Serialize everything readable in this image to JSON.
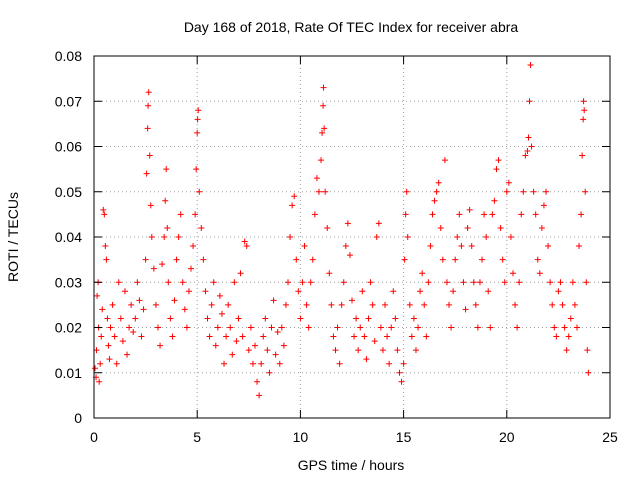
{
  "chart_data": {
    "type": "scatter",
    "title": "Day 168 of 2018, Rate Of TEC Index for receiver abra",
    "xlabel": "GPS time / hours",
    "ylabel": "ROTI / TECUs",
    "xlim": [
      0,
      25
    ],
    "ylim": [
      0,
      0.08
    ],
    "x_ticks": [
      0,
      5,
      10,
      15,
      20,
      25
    ],
    "x_tick_labels": [
      "0",
      "5",
      "10",
      "15",
      "20",
      "25"
    ],
    "y_ticks": [
      0,
      0.01,
      0.02,
      0.03,
      0.04,
      0.05,
      0.06,
      0.07,
      0.08
    ],
    "y_tick_labels": [
      "0",
      "0.01",
      "0.02",
      "0.03",
      "0.04",
      "0.05",
      "0.06",
      "0.07",
      "0.08"
    ],
    "grid": true,
    "marker": "plus",
    "marker_color": "#ff0000",
    "points": [
      [
        0.05,
        0.011
      ],
      [
        0.1,
        0.009
      ],
      [
        0.12,
        0.015
      ],
      [
        0.15,
        0.027
      ],
      [
        0.2,
        0.03
      ],
      [
        0.22,
        0.02
      ],
      [
        0.25,
        0.008
      ],
      [
        0.3,
        0.012
      ],
      [
        0.35,
        0.018
      ],
      [
        0.4,
        0.024
      ],
      [
        0.45,
        0.046
      ],
      [
        0.5,
        0.045
      ],
      [
        0.55,
        0.038
      ],
      [
        0.6,
        0.035
      ],
      [
        0.65,
        0.022
      ],
      [
        0.7,
        0.016
      ],
      [
        0.75,
        0.013
      ],
      [
        0.8,
        0.02
      ],
      [
        0.9,
        0.025
      ],
      [
        1.0,
        0.018
      ],
      [
        1.1,
        0.012
      ],
      [
        1.2,
        0.03
      ],
      [
        1.3,
        0.022
      ],
      [
        1.4,
        0.017
      ],
      [
        1.5,
        0.028
      ],
      [
        1.6,
        0.014
      ],
      [
        1.7,
        0.02
      ],
      [
        1.8,
        0.025
      ],
      [
        1.9,
        0.019
      ],
      [
        2.0,
        0.022
      ],
      [
        2.1,
        0.03
      ],
      [
        2.2,
        0.026
      ],
      [
        2.3,
        0.018
      ],
      [
        2.4,
        0.024
      ],
      [
        2.5,
        0.035
      ],
      [
        2.55,
        0.054
      ],
      [
        2.6,
        0.064
      ],
      [
        2.62,
        0.069
      ],
      [
        2.65,
        0.072
      ],
      [
        2.7,
        0.058
      ],
      [
        2.75,
        0.047
      ],
      [
        2.8,
        0.04
      ],
      [
        2.9,
        0.033
      ],
      [
        3.0,
        0.025
      ],
      [
        3.1,
        0.02
      ],
      [
        3.2,
        0.016
      ],
      [
        3.3,
        0.034
      ],
      [
        3.4,
        0.04
      ],
      [
        3.45,
        0.048
      ],
      [
        3.5,
        0.055
      ],
      [
        3.55,
        0.042
      ],
      [
        3.6,
        0.03
      ],
      [
        3.7,
        0.022
      ],
      [
        3.8,
        0.018
      ],
      [
        3.9,
        0.026
      ],
      [
        4.0,
        0.035
      ],
      [
        4.1,
        0.04
      ],
      [
        4.2,
        0.045
      ],
      [
        4.3,
        0.03
      ],
      [
        4.4,
        0.024
      ],
      [
        4.5,
        0.02
      ],
      [
        4.6,
        0.028
      ],
      [
        4.7,
        0.033
      ],
      [
        4.8,
        0.038
      ],
      [
        4.9,
        0.045
      ],
      [
        4.95,
        0.055
      ],
      [
        5.0,
        0.063
      ],
      [
        5.02,
        0.066
      ],
      [
        5.05,
        0.068
      ],
      [
        5.1,
        0.05
      ],
      [
        5.2,
        0.042
      ],
      [
        5.3,
        0.035
      ],
      [
        5.4,
        0.028
      ],
      [
        5.5,
        0.022
      ],
      [
        5.6,
        0.018
      ],
      [
        5.7,
        0.025
      ],
      [
        5.8,
        0.03
      ],
      [
        5.9,
        0.016
      ],
      [
        6.0,
        0.02
      ],
      [
        6.1,
        0.027
      ],
      [
        6.2,
        0.023
      ],
      [
        6.3,
        0.012
      ],
      [
        6.4,
        0.018
      ],
      [
        6.5,
        0.025
      ],
      [
        6.6,
        0.02
      ],
      [
        6.7,
        0.014
      ],
      [
        6.8,
        0.03
      ],
      [
        6.9,
        0.017
      ],
      [
        7.0,
        0.022
      ],
      [
        7.1,
        0.032
      ],
      [
        7.2,
        0.018
      ],
      [
        7.3,
        0.039
      ],
      [
        7.4,
        0.038
      ],
      [
        7.5,
        0.015
      ],
      [
        7.6,
        0.02
      ],
      [
        7.7,
        0.012
      ],
      [
        7.8,
        0.016
      ],
      [
        7.9,
        0.008
      ],
      [
        8.0,
        0.005
      ],
      [
        8.1,
        0.012
      ],
      [
        8.2,
        0.018
      ],
      [
        8.3,
        0.022
      ],
      [
        8.4,
        0.015
      ],
      [
        8.5,
        0.01
      ],
      [
        8.6,
        0.02
      ],
      [
        8.7,
        0.026
      ],
      [
        8.8,
        0.014
      ],
      [
        8.9,
        0.019
      ],
      [
        9.0,
        0.012
      ],
      [
        9.1,
        0.02
      ],
      [
        9.2,
        0.016
      ],
      [
        9.3,
        0.025
      ],
      [
        9.4,
        0.03
      ],
      [
        9.5,
        0.04
      ],
      [
        9.6,
        0.047
      ],
      [
        9.7,
        0.049
      ],
      [
        9.8,
        0.035
      ],
      [
        9.9,
        0.028
      ],
      [
        10.0,
        0.022
      ],
      [
        10.1,
        0.03
      ],
      [
        10.2,
        0.038
      ],
      [
        10.3,
        0.025
      ],
      [
        10.4,
        0.02
      ],
      [
        10.5,
        0.03
      ],
      [
        10.6,
        0.035
      ],
      [
        10.7,
        0.045
      ],
      [
        10.8,
        0.053
      ],
      [
        10.9,
        0.05
      ],
      [
        11.0,
        0.057
      ],
      [
        11.05,
        0.063
      ],
      [
        11.1,
        0.069
      ],
      [
        11.12,
        0.073
      ],
      [
        11.15,
        0.064
      ],
      [
        11.2,
        0.05
      ],
      [
        11.3,
        0.042
      ],
      [
        11.4,
        0.032
      ],
      [
        11.5,
        0.025
      ],
      [
        11.6,
        0.018
      ],
      [
        11.7,
        0.015
      ],
      [
        11.8,
        0.02
      ],
      [
        11.9,
        0.012
      ],
      [
        12.0,
        0.025
      ],
      [
        12.1,
        0.03
      ],
      [
        12.2,
        0.038
      ],
      [
        12.3,
        0.043
      ],
      [
        12.4,
        0.036
      ],
      [
        12.5,
        0.026
      ],
      [
        12.6,
        0.018
      ],
      [
        12.7,
        0.022
      ],
      [
        12.8,
        0.015
      ],
      [
        12.9,
        0.02
      ],
      [
        13.0,
        0.028
      ],
      [
        13.1,
        0.018
      ],
      [
        13.2,
        0.013
      ],
      [
        13.3,
        0.022
      ],
      [
        13.4,
        0.03
      ],
      [
        13.5,
        0.025
      ],
      [
        13.6,
        0.017
      ],
      [
        13.7,
        0.04
      ],
      [
        13.8,
        0.043
      ],
      [
        13.9,
        0.02
      ],
      [
        14.0,
        0.015
      ],
      [
        14.1,
        0.025
      ],
      [
        14.2,
        0.018
      ],
      [
        14.3,
        0.012
      ],
      [
        14.4,
        0.02
      ],
      [
        14.5,
        0.028
      ],
      [
        14.6,
        0.022
      ],
      [
        14.7,
        0.015
      ],
      [
        14.8,
        0.01
      ],
      [
        14.9,
        0.008
      ],
      [
        15.0,
        0.012
      ],
      [
        15.05,
        0.035
      ],
      [
        15.1,
        0.045
      ],
      [
        15.15,
        0.05
      ],
      [
        15.2,
        0.04
      ],
      [
        15.3,
        0.025
      ],
      [
        15.4,
        0.018
      ],
      [
        15.5,
        0.022
      ],
      [
        15.6,
        0.015
      ],
      [
        15.7,
        0.02
      ],
      [
        15.8,
        0.028
      ],
      [
        15.9,
        0.032
      ],
      [
        16.0,
        0.025
      ],
      [
        16.1,
        0.018
      ],
      [
        16.2,
        0.03
      ],
      [
        16.3,
        0.038
      ],
      [
        16.4,
        0.045
      ],
      [
        16.5,
        0.048
      ],
      [
        16.6,
        0.05
      ],
      [
        16.7,
        0.052
      ],
      [
        16.8,
        0.042
      ],
      [
        16.9,
        0.035
      ],
      [
        17.0,
        0.057
      ],
      [
        17.1,
        0.03
      ],
      [
        17.2,
        0.025
      ],
      [
        17.3,
        0.02
      ],
      [
        17.4,
        0.028
      ],
      [
        17.5,
        0.035
      ],
      [
        17.6,
        0.04
      ],
      [
        17.7,
        0.045
      ],
      [
        17.8,
        0.038
      ],
      [
        17.9,
        0.03
      ],
      [
        18.0,
        0.024
      ],
      [
        18.1,
        0.042
      ],
      [
        18.2,
        0.046
      ],
      [
        18.3,
        0.038
      ],
      [
        18.4,
        0.03
      ],
      [
        18.5,
        0.025
      ],
      [
        18.6,
        0.02
      ],
      [
        18.7,
        0.03
      ],
      [
        18.8,
        0.035
      ],
      [
        18.9,
        0.045
      ],
      [
        19.0,
        0.04
      ],
      [
        19.1,
        0.028
      ],
      [
        19.2,
        0.02
      ],
      [
        19.3,
        0.045
      ],
      [
        19.4,
        0.048
      ],
      [
        19.5,
        0.055
      ],
      [
        19.6,
        0.057
      ],
      [
        19.7,
        0.042
      ],
      [
        19.8,
        0.035
      ],
      [
        19.9,
        0.03
      ],
      [
        20.0,
        0.05
      ],
      [
        20.1,
        0.052
      ],
      [
        20.2,
        0.04
      ],
      [
        20.3,
        0.032
      ],
      [
        20.4,
        0.025
      ],
      [
        20.5,
        0.02
      ],
      [
        20.6,
        0.03
      ],
      [
        20.7,
        0.045
      ],
      [
        20.8,
        0.05
      ],
      [
        20.9,
        0.058
      ],
      [
        21.0,
        0.059
      ],
      [
        21.05,
        0.062
      ],
      [
        21.1,
        0.07
      ],
      [
        21.15,
        0.078
      ],
      [
        21.2,
        0.06
      ],
      [
        21.3,
        0.05
      ],
      [
        21.4,
        0.045
      ],
      [
        21.5,
        0.035
      ],
      [
        21.6,
        0.032
      ],
      [
        21.7,
        0.042
      ],
      [
        21.8,
        0.047
      ],
      [
        21.9,
        0.05
      ],
      [
        22.0,
        0.038
      ],
      [
        22.1,
        0.03
      ],
      [
        22.2,
        0.025
      ],
      [
        22.3,
        0.02
      ],
      [
        22.4,
        0.018
      ],
      [
        22.5,
        0.028
      ],
      [
        22.6,
        0.03
      ],
      [
        22.7,
        0.025
      ],
      [
        22.8,
        0.02
      ],
      [
        22.9,
        0.015
      ],
      [
        23.0,
        0.018
      ],
      [
        23.1,
        0.022
      ],
      [
        23.2,
        0.03
      ],
      [
        23.3,
        0.025
      ],
      [
        23.4,
        0.02
      ],
      [
        23.5,
        0.038
      ],
      [
        23.6,
        0.045
      ],
      [
        23.65,
        0.058
      ],
      [
        23.7,
        0.066
      ],
      [
        23.72,
        0.07
      ],
      [
        23.75,
        0.068
      ],
      [
        23.8,
        0.05
      ],
      [
        23.85,
        0.03
      ],
      [
        23.9,
        0.015
      ],
      [
        23.95,
        0.01
      ]
    ]
  }
}
